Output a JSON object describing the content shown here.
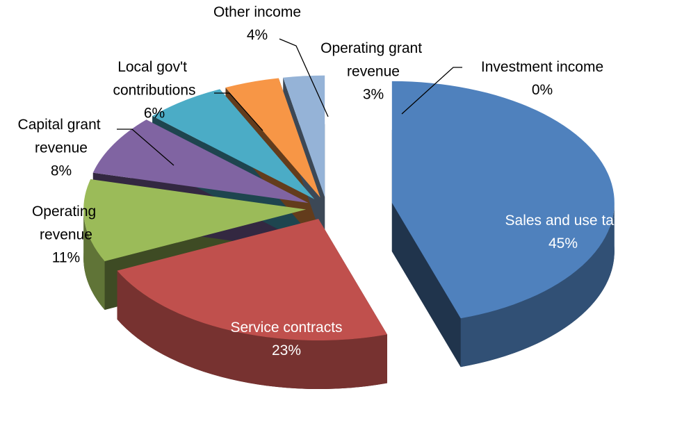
{
  "chart_data": {
    "type": "pie",
    "categories": [
      "Sales and use tax",
      "Service contracts",
      "Operating revenue",
      "Capital grant revenue",
      "Local gov't contributions",
      "Other income",
      "Operating grant revenue",
      "Investment income"
    ],
    "values": [
      45,
      23,
      11,
      8,
      6,
      4,
      3,
      0
    ],
    "value_labels": [
      "45%",
      "23%",
      "11%",
      "8%",
      "6%",
      "4%",
      "3%",
      "0%"
    ],
    "colors": [
      "#4f81bd",
      "#c0504d",
      "#9bbb59",
      "#8064a2",
      "#4bacc6",
      "#f79646",
      "#95b3d7",
      "#c8c8c8"
    ]
  }
}
